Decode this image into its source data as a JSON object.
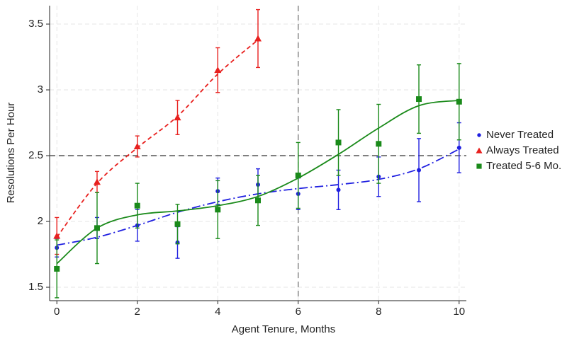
{
  "chart_data": {
    "type": "scatter",
    "x_label": "Agent Tenure, Months",
    "y_label": "Resolutions Per Hour",
    "x": [
      0,
      1,
      2,
      3,
      4,
      5,
      6,
      7,
      8,
      9,
      10
    ],
    "xlim": [
      -0.18,
      10.18
    ],
    "ylim": [
      1.398,
      3.64
    ],
    "xticks": [
      0,
      2,
      4,
      6,
      8,
      10
    ],
    "yticks": [
      1.5,
      2,
      2.5,
      3,
      3.5
    ],
    "grid": true,
    "hline": 2.5,
    "vline": 6,
    "legend": "right",
    "series": [
      {
        "name": "Never Treated",
        "color": "#1f1fe0",
        "marker": "circle",
        "dash": "12 4 2 4",
        "values": [
          1.8,
          1.95,
          1.97,
          1.84,
          2.23,
          2.28,
          2.21,
          2.24,
          2.34,
          2.39,
          2.56
        ],
        "errors": [
          0.07,
          0.08,
          0.12,
          0.12,
          0.1,
          0.12,
          0.12,
          0.15,
          0.15,
          0.24,
          0.19
        ],
        "fit": [
          1.82,
          1.88,
          1.97,
          2.07,
          2.15,
          2.21,
          2.25,
          2.28,
          2.32,
          2.4,
          2.55
        ]
      },
      {
        "name": "Always Treated",
        "color": "#e8201e",
        "marker": "triangle",
        "dash": "6 4",
        "values": [
          1.89,
          2.3,
          2.57,
          2.79,
          3.15,
          3.39,
          null,
          null,
          null,
          null,
          null
        ],
        "errors": [
          0.14,
          0.08,
          0.08,
          0.13,
          0.17,
          0.22,
          null,
          null,
          null,
          null,
          null
        ],
        "fit": [
          1.88,
          2.29,
          2.56,
          2.8,
          3.12,
          3.38,
          null,
          null,
          null,
          null,
          null
        ]
      },
      {
        "name": "Treated 5-6 Mo.",
        "color": "#1a8a1a",
        "marker": "square",
        "dash": "none",
        "values": [
          1.64,
          1.95,
          2.12,
          1.98,
          2.09,
          2.16,
          2.35,
          2.6,
          2.59,
          2.93,
          2.91
        ],
        "errors": [
          0.22,
          0.27,
          0.17,
          0.15,
          0.22,
          0.19,
          0.25,
          0.25,
          0.3,
          0.26,
          0.29
        ],
        "fit": [
          1.68,
          1.95,
          2.05,
          2.08,
          2.12,
          2.19,
          2.33,
          2.51,
          2.71,
          2.88,
          2.92
        ]
      }
    ]
  }
}
